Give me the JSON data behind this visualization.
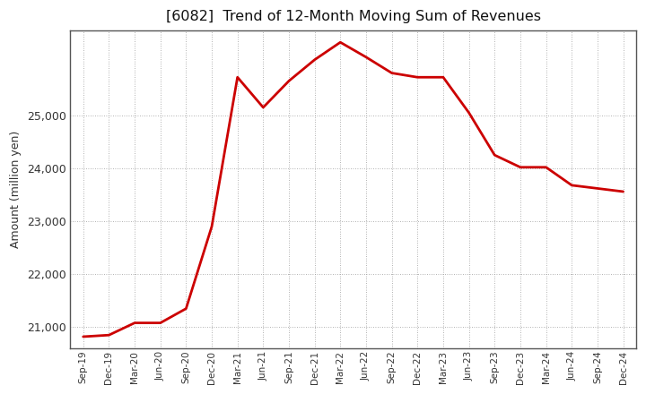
{
  "title": "[6082]  Trend of 12-Month Moving Sum of Revenues",
  "ylabel": "Amount (million yen)",
  "line_color": "#cc0000",
  "line_width": 2.0,
  "background_color": "#ffffff",
  "plot_background": "#ffffff",
  "grid_color": "#999999",
  "ylim": [
    20600,
    26600
  ],
  "yticks": [
    21000,
    22000,
    23000,
    24000,
    25000
  ],
  "x_labels": [
    "Sep-19",
    "Dec-19",
    "Mar-20",
    "Jun-20",
    "Sep-20",
    "Dec-20",
    "Mar-21",
    "Jun-21",
    "Sep-21",
    "Dec-21",
    "Mar-22",
    "Jun-22",
    "Sep-22",
    "Dec-22",
    "Mar-23",
    "Jun-23",
    "Sep-23",
    "Dec-23",
    "Mar-24",
    "Jun-24",
    "Sep-24",
    "Dec-24"
  ],
  "y_values": [
    20820,
    20850,
    21080,
    21080,
    21350,
    22900,
    25720,
    25150,
    25650,
    26050,
    26380,
    26100,
    25800,
    25720,
    25720,
    25050,
    24250,
    24020,
    24020,
    23680,
    23620,
    23560
  ]
}
